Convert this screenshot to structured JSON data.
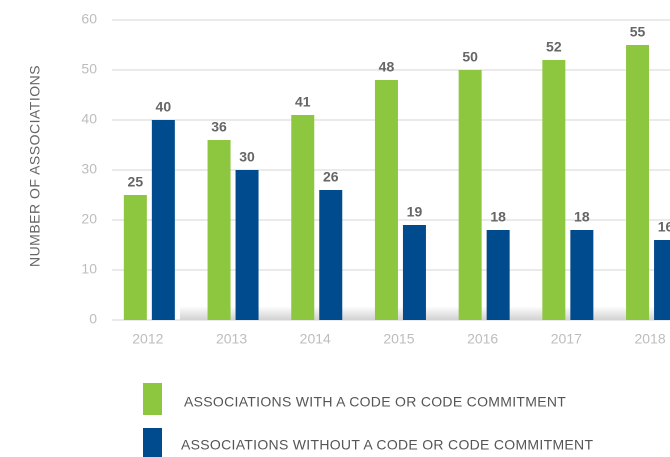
{
  "chart_data": {
    "type": "bar",
    "y_label": "NUMBER OF ASSOCIATIONS",
    "categories": [
      "2012",
      "2013",
      "2014",
      "2015",
      "2016",
      "2017",
      "2018"
    ],
    "series": [
      {
        "name": "ASSOCIATIONS WITH A CODE OR CODE COMMITMENT",
        "color": "#8dc63f",
        "values": [
          25,
          36,
          41,
          48,
          50,
          52,
          55
        ]
      },
      {
        "name": "ASSOCIATIONS WITHOUT A CODE OR CODE COMMITMENT",
        "color": "#004b8d",
        "values": [
          40,
          30,
          26,
          19,
          18,
          18,
          16
        ]
      }
    ],
    "ylim": [
      0,
      60
    ],
    "yticks": [
      0,
      10,
      20,
      30,
      40,
      50,
      60
    ],
    "grid": true,
    "legend": "bottom"
  }
}
